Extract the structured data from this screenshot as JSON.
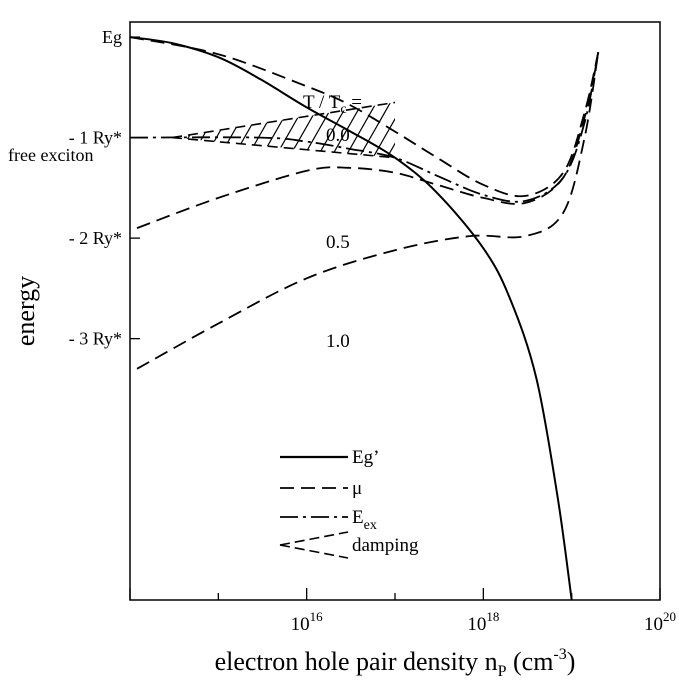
{
  "chart_data": {
    "type": "line",
    "title": "",
    "xlabel": "electron hole pair density",
    "xlabel_symbol": "n",
    "xlabel_symbol_sub": "P",
    "xlabel_unit": "(cm",
    "xlabel_unit_exp": "-3",
    "xlabel_unit_close": ")",
    "ylabel": "energy",
    "x_scale": "log",
    "xlim": [
      100000000000000.0,
      1e+20
    ],
    "ylim": [
      -5.6,
      0.15
    ],
    "grid": false,
    "x_ticks": [
      {
        "value": 1e+16,
        "base": "10",
        "exp": "16"
      },
      {
        "value": 1e+18,
        "base": "10",
        "exp": "18"
      },
      {
        "value": 1e+20,
        "base": "10",
        "exp": "20"
      }
    ],
    "y_ticks": [
      {
        "value": 0,
        "label": "Eg"
      },
      {
        "value": -1,
        "label": "- 1 Ry*"
      },
      {
        "value": -2,
        "label": "- 2 Ry*"
      },
      {
        "value": -3,
        "label": "- 3 Ry*"
      }
    ],
    "annotations": {
      "free_exciton": "free exciton",
      "t_ratio_prefix": "T / T",
      "t_ratio_sub": "c",
      "t_ratio_suffix": " =",
      "t0": "0.0",
      "t05": "0.5",
      "t1": "1.0"
    },
    "legend": {
      "position": "bottom-center",
      "entries": [
        {
          "style": "solid",
          "label": "Eg’"
        },
        {
          "style": "dashed",
          "label": "μ"
        },
        {
          "style": "dashdot",
          "label": "E",
          "sub": "ex"
        },
        {
          "style": "wedge",
          "label": "damping"
        }
      ]
    },
    "series": [
      {
        "name": "Eg’",
        "style": "solid",
        "x": [
          100000000000000.0,
          300000000000000.0,
          1000000000000000.0,
          3000000000000000.0,
          1e+16,
          3e+16,
          1e+17,
          3e+17,
          1e+18,
          2e+18,
          4e+18,
          7e+18,
          1e+19
        ],
        "y": [
          0.0,
          -0.06,
          -0.2,
          -0.42,
          -0.7,
          -0.93,
          -1.2,
          -1.55,
          -2.1,
          -2.6,
          -3.4,
          -4.6,
          -5.6
        ]
      },
      {
        "name": "μ",
        "style": "dashed",
        "temperature": "0.0",
        "x": [
          100000000000000.0,
          1000000000000000.0,
          1e+16,
          3e+16,
          1e+17,
          3e+17,
          1e+18,
          3e+18,
          8e+18,
          1.4e+19,
          2e+19
        ],
        "y": [
          0.0,
          -0.17,
          -0.49,
          -0.67,
          -0.94,
          -1.2,
          -1.47,
          -1.58,
          -1.35,
          -0.75,
          -0.15
        ]
      },
      {
        "name": "μ",
        "style": "dashed",
        "temperature": "0.5",
        "x": [
          120000000000000.0,
          1000000000000000.0,
          1e+16,
          3e+16,
          1e+17,
          3e+17,
          1e+18,
          3e+18,
          8e+18,
          1.4e+19,
          2e+19
        ],
        "y": [
          -1.9,
          -1.6,
          -1.33,
          -1.3,
          -1.35,
          -1.47,
          -1.6,
          -1.65,
          -1.4,
          -0.8,
          -0.15
        ]
      },
      {
        "name": "μ",
        "style": "dashed",
        "temperature": "1.0",
        "x": [
          120000000000000.0,
          1000000000000000.0,
          1e+16,
          1e+17,
          7e+17,
          3e+18,
          8e+18,
          1.4e+19,
          2e+19
        ],
        "y": [
          -3.3,
          -2.85,
          -2.4,
          -2.12,
          -1.98,
          -1.98,
          -1.75,
          -1.0,
          -0.15
        ]
      },
      {
        "name": "E",
        "style": "dashdot",
        "x": [
          100000000000000.0,
          3000000000000000.0,
          1e+16,
          3e+16,
          1e+17,
          3e+17,
          1e+18,
          3e+18,
          8e+18,
          1.4e+19,
          2e+19
        ],
        "y": [
          -1.0,
          -1.0,
          -1.04,
          -1.11,
          -1.2,
          -1.38,
          -1.57,
          -1.63,
          -1.4,
          -0.85,
          -0.15
        ]
      }
    ],
    "damping_region": {
      "x": [
        300000000000000.0,
        1e+17
      ],
      "upper_y": [
        -1.0,
        -0.65
      ],
      "lower_y": [
        -1.0,
        -1.2
      ]
    }
  }
}
